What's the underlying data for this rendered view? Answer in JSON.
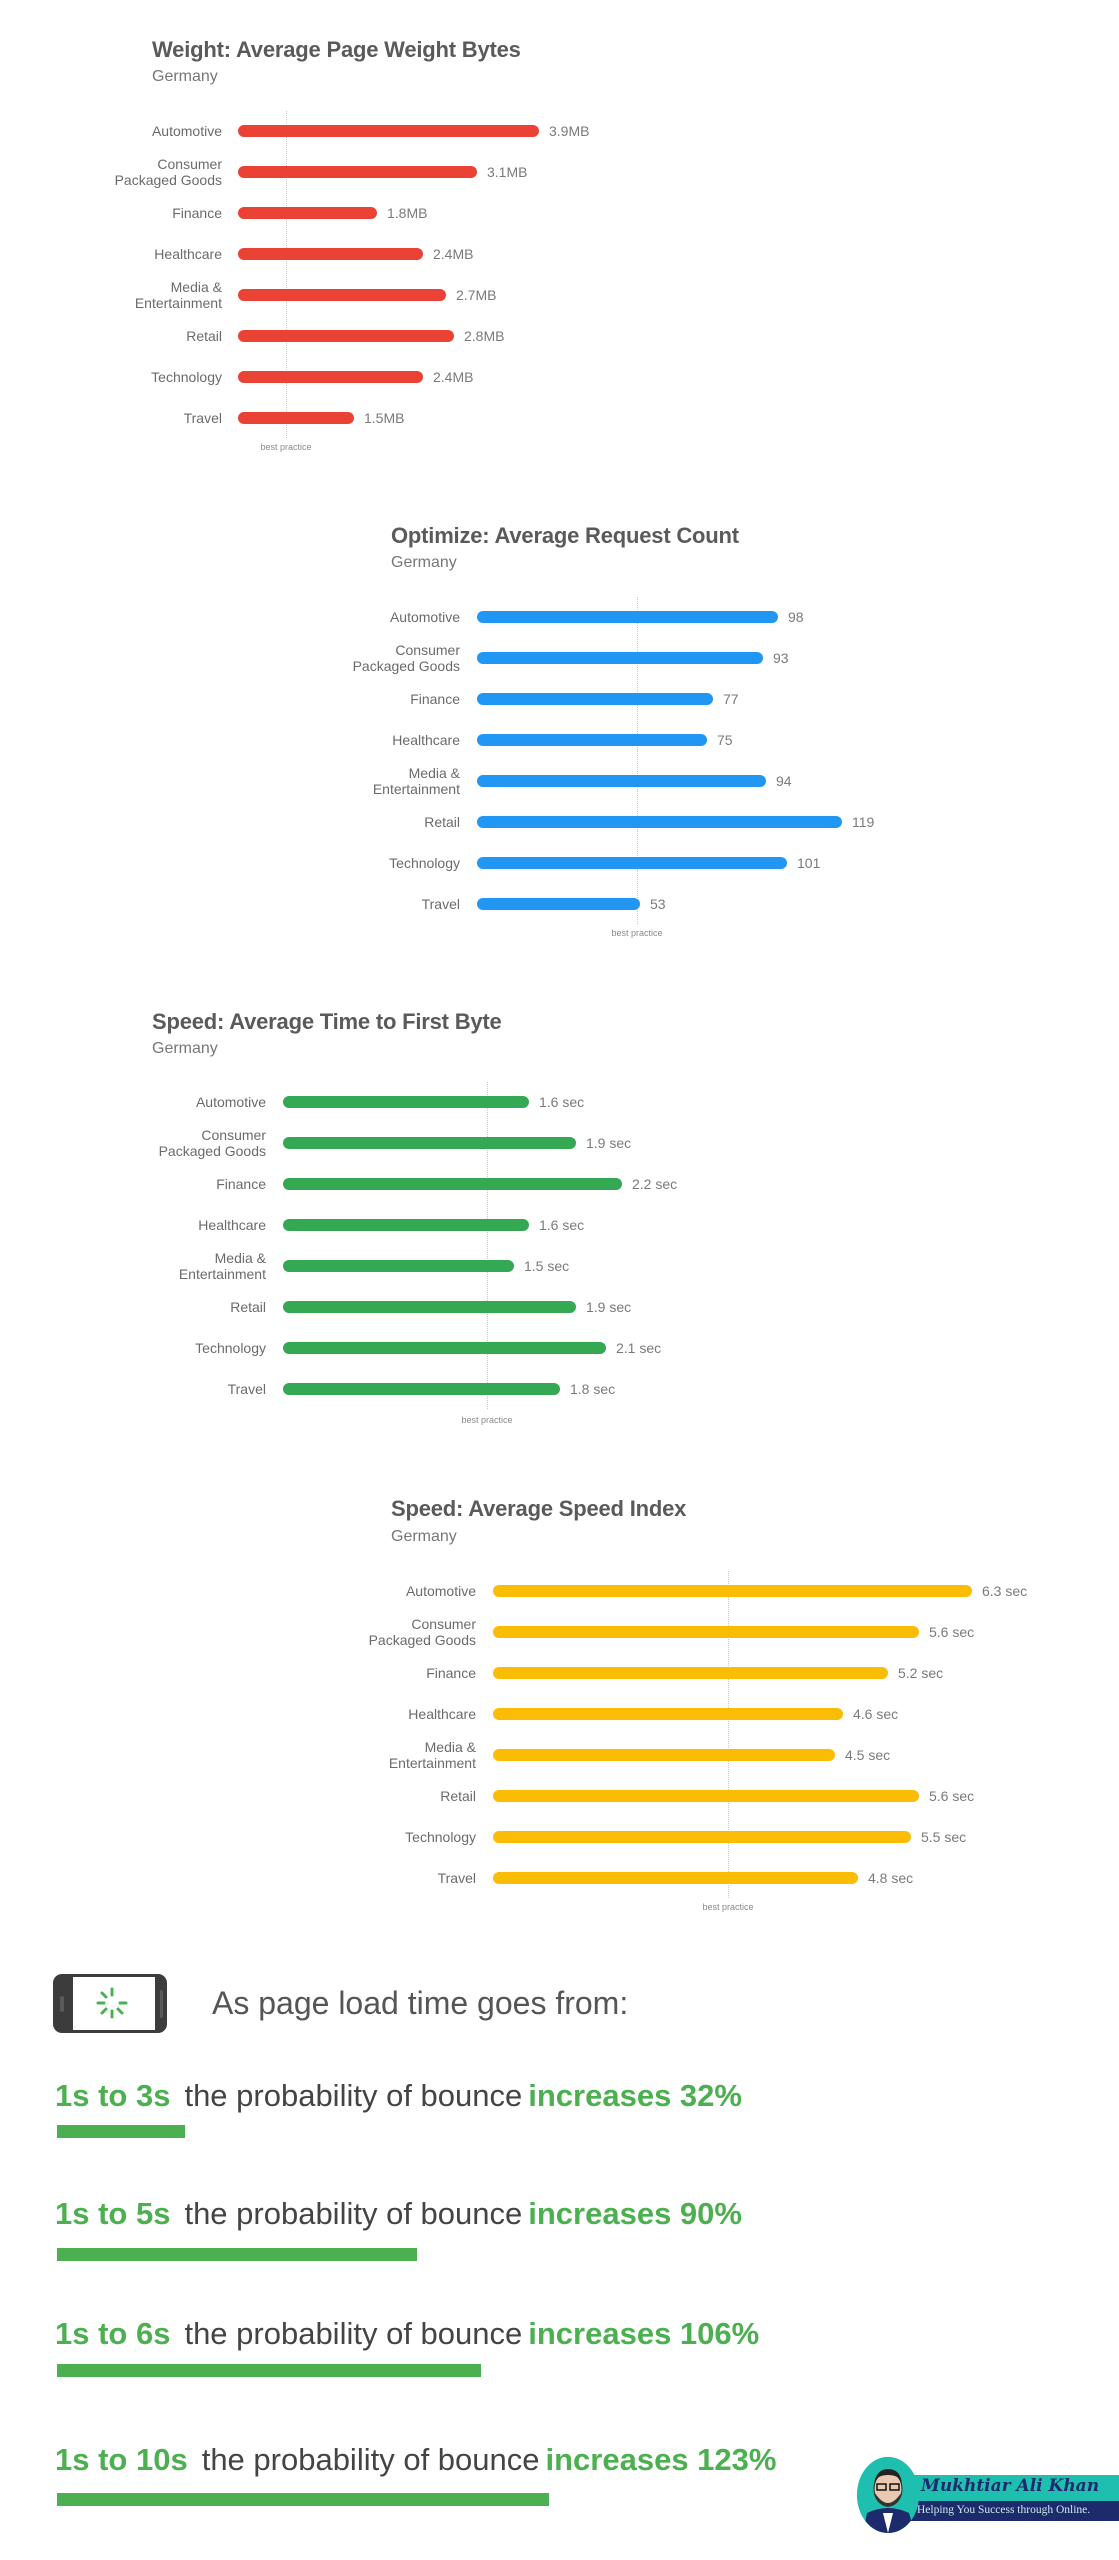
{
  "chart_data": [
    {
      "type": "bar",
      "orientation": "horizontal",
      "title": "Weight: Average Page Weight Bytes",
      "subtitle": "Germany",
      "categories": [
        "Automotive",
        "Consumer\nPackaged Goods",
        "Finance",
        "Healthcare",
        "Media &\nEntertainment",
        "Retail",
        "Technology",
        "Travel"
      ],
      "values": [
        3.9,
        3.1,
        1.8,
        2.4,
        2.7,
        2.8,
        2.4,
        1.5
      ],
      "value_labels": [
        "3.9MB",
        "3.1MB",
        "1.8MB",
        "2.4MB",
        "2.7MB",
        "2.8MB",
        "2.4MB",
        "1.5MB"
      ],
      "unit": "MB",
      "color": "#ea4335",
      "reference_line": {
        "label": "best practice"
      },
      "xlabel": "",
      "ylabel": ""
    },
    {
      "type": "bar",
      "orientation": "horizontal",
      "title": "Optimize: Average Request Count",
      "subtitle": "Germany",
      "categories": [
        "Automotive",
        "Consumer\nPackaged Goods",
        "Finance",
        "Healthcare",
        "Media &\nEntertainment",
        "Retail",
        "Technology",
        "Travel"
      ],
      "values": [
        98,
        93,
        77,
        75,
        94,
        119,
        101,
        53
      ],
      "value_labels": [
        "98",
        "93",
        "77",
        "75",
        "94",
        "119",
        "101",
        "53"
      ],
      "unit": "requests",
      "color": "#2196f3",
      "reference_line": {
        "label": "best practice"
      },
      "xlabel": "",
      "ylabel": ""
    },
    {
      "type": "bar",
      "orientation": "horizontal",
      "title": "Speed: Average Time to First Byte",
      "subtitle": "Germany",
      "categories": [
        "Automotive",
        "Consumer\nPackaged Goods",
        "Finance",
        "Healthcare",
        "Media &\nEntertainment",
        "Retail",
        "Technology",
        "Travel"
      ],
      "values": [
        1.6,
        1.9,
        2.2,
        1.6,
        1.5,
        1.9,
        2.1,
        1.8
      ],
      "value_labels": [
        "1.6 sec",
        "1.9 sec",
        "2.2 sec",
        "1.6 sec",
        "1.5 sec",
        "1.9 sec",
        "2.1 sec",
        "1.8 sec"
      ],
      "unit": "sec",
      "color": "#34a853",
      "reference_line": {
        "label": "best practice"
      },
      "xlabel": "",
      "ylabel": ""
    },
    {
      "type": "bar",
      "orientation": "horizontal",
      "title": "Speed: Average Speed Index",
      "subtitle": "Germany",
      "categories": [
        "Automotive",
        "Consumer\nPackaged Goods",
        "Finance",
        "Healthcare",
        "Media &\nEntertainment",
        "Retail",
        "Technology",
        "Travel"
      ],
      "values": [
        6.3,
        5.6,
        5.2,
        4.6,
        4.5,
        5.6,
        5.5,
        4.8
      ],
      "value_labels": [
        "6.3 sec",
        "5.6 sec",
        "5.2 sec",
        "4.6 sec",
        "4.5 sec",
        "5.6 sec",
        "5.5 sec",
        "4.8 sec"
      ],
      "unit": "sec",
      "color": "#fbbc05",
      "reference_line": {
        "label": "best practice"
      },
      "xlabel": "",
      "ylabel": ""
    },
    {
      "type": "bar",
      "orientation": "horizontal",
      "title": "As page load time goes from:",
      "categories": [
        "1s to 3s",
        "1s to 5s",
        "1s to 6s",
        "1s to 10s"
      ],
      "values": [
        32,
        90,
        106,
        123
      ],
      "value_labels": [
        "increases 32%",
        "increases 90%",
        "increases 106%",
        "increases 123%"
      ],
      "unit": "% increase in probability of bounce",
      "color": "#4caf50"
    }
  ],
  "bounce": {
    "heading": "As page load time goes from:",
    "icon": "phone-loading-spinner-icon",
    "middle_text": "the probability of bounce",
    "rows": [
      {
        "range": "1s to 3s",
        "increase": "increases 32%"
      },
      {
        "range": "1s to 5s",
        "increase": "increases 90%"
      },
      {
        "range": "1s to 6s",
        "increase": "increases 106%"
      },
      {
        "range": "1s to 10s",
        "increase": "increases 123%"
      }
    ]
  },
  "logo": {
    "name": "Mukhtiar Ali Khan",
    "tagline": "Helping You Success through Online.",
    "colors": {
      "teal": "#1fbfb0",
      "navy": "#1d2a6b"
    }
  }
}
